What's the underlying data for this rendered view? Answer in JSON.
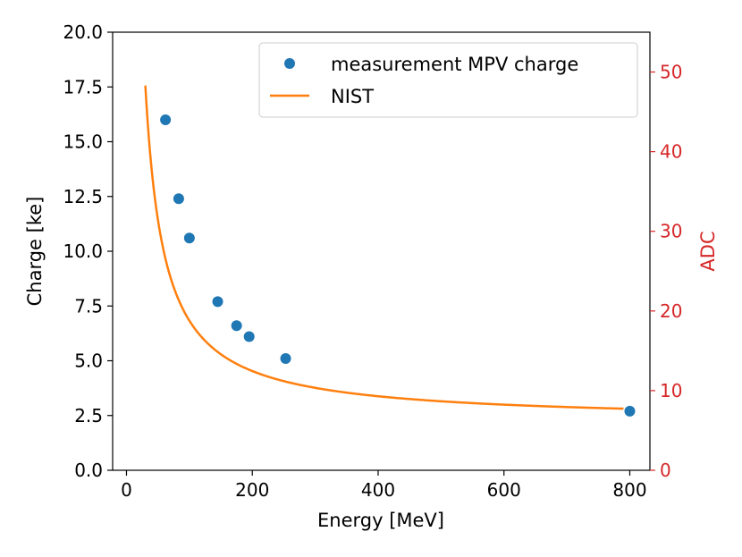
{
  "chart_data": {
    "type": "scatter",
    "x": {
      "label": "Energy [MeV]",
      "lim": [
        -22,
        832
      ],
      "ticks": [
        0,
        200,
        400,
        600,
        800
      ],
      "tick_labels": [
        "0",
        "200",
        "400",
        "600",
        "800"
      ]
    },
    "y_left": {
      "label": "Charge [ke]",
      "lim": [
        0,
        20
      ],
      "ticks": [
        0,
        2.5,
        5,
        7.5,
        10,
        12.5,
        15,
        17.5,
        20
      ],
      "tick_labels": [
        "0.0",
        "2.5",
        "5.0",
        "7.5",
        "10.0",
        "12.5",
        "15.0",
        "17.5",
        "20.0"
      ]
    },
    "y_right": {
      "label": "ADC",
      "lim": [
        0,
        55
      ],
      "ticks": [
        0,
        10,
        20,
        30,
        40,
        50
      ],
      "tick_labels": [
        "0",
        "10",
        "20",
        "30",
        "40",
        "50"
      ],
      "color": "#d62728"
    },
    "series": [
      {
        "name": "measurement MPV charge",
        "kind": "scatter",
        "color": "#1f77b4",
        "points": [
          {
            "x": 62,
            "y": 16.0
          },
          {
            "x": 83,
            "y": 12.4
          },
          {
            "x": 100,
            "y": 10.6
          },
          {
            "x": 145,
            "y": 7.7
          },
          {
            "x": 175,
            "y": 6.6
          },
          {
            "x": 195,
            "y": 6.1
          },
          {
            "x": 253,
            "y": 5.1
          },
          {
            "x": 800,
            "y": 2.7
          }
        ]
      },
      {
        "name": "NIST",
        "kind": "line",
        "color": "#ff7f0e",
        "model": "C + K / E^p",
        "params": {
          "C": 2.23,
          "K": 460,
          "p": 1.0
        },
        "x_range": [
          30,
          790
        ]
      }
    ],
    "legend": {
      "position": "top-right"
    },
    "grid": false
  }
}
